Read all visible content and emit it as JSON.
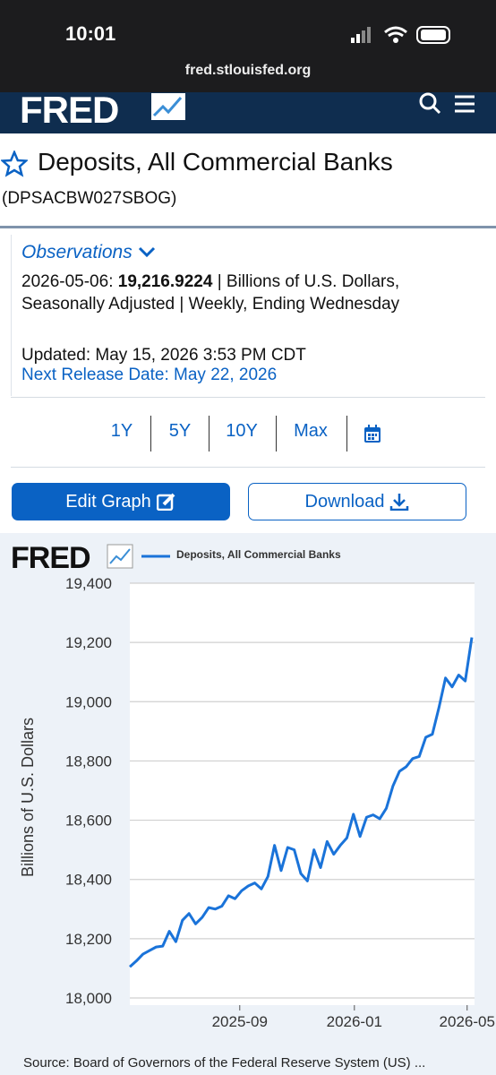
{
  "status_bar": {
    "time": "10:01",
    "url": "fred.stlouisfed.org"
  },
  "header": {
    "logo": "FRED"
  },
  "series_title": "Deposits, All Commercial Banks",
  "series_id": "(DPSACBW027SBOG)",
  "observations": {
    "heading": "Observations",
    "date": "2026-05-06:",
    "value": "19,216.9224",
    "units": "| Billions of U.S. Dollars, Seasonally Adjusted | Weekly, Ending Wednesday",
    "updated": "Updated: May 15, 2026 3:53 PM CDT",
    "next_release": "Next Release Date: May 22, 2026"
  },
  "ranges": [
    "1Y",
    "5Y",
    "10Y",
    "Max"
  ],
  "buttons": {
    "edit": "Edit Graph",
    "download": "Download"
  },
  "chart_data": {
    "type": "line",
    "logo": "FRED",
    "ylabel": "Billions of U.S. Dollars",
    "source": "Source: Board of Governors of the Federal Reserve System (US) ...",
    "x": [
      "2025-05-07",
      "2025-05-14",
      "2025-05-21",
      "2025-05-28",
      "2025-06-04",
      "2025-06-11",
      "2025-06-18",
      "2025-06-25",
      "2025-07-02",
      "2025-07-09",
      "2025-07-16",
      "2025-07-23",
      "2025-07-30",
      "2025-08-06",
      "2025-08-13",
      "2025-08-20",
      "2025-08-27",
      "2025-09-03",
      "2025-09-10",
      "2025-09-17",
      "2025-09-24",
      "2025-10-01",
      "2025-10-08",
      "2025-10-15",
      "2025-10-22",
      "2025-10-29",
      "2025-11-05",
      "2025-11-12",
      "2025-11-19",
      "2025-11-26",
      "2025-12-03",
      "2025-12-10",
      "2025-12-17",
      "2025-12-24",
      "2025-12-31",
      "2026-01-07",
      "2026-01-14",
      "2026-01-21",
      "2026-01-28",
      "2026-02-04",
      "2026-02-11",
      "2026-02-18",
      "2026-02-25",
      "2026-03-04",
      "2026-03-11",
      "2026-03-18",
      "2026-03-25",
      "2026-04-01",
      "2026-04-08",
      "2026-04-15",
      "2026-04-22",
      "2026-04-29",
      "2026-05-06"
    ],
    "series": [
      {
        "name": "Deposits, All Commercial Banks",
        "color": "#1a73d9",
        "values": [
          18105,
          18125,
          18148,
          18160,
          18172,
          18175,
          18225,
          18190,
          18262,
          18285,
          18250,
          18272,
          18305,
          18300,
          18310,
          18345,
          18335,
          18362,
          18378,
          18388,
          18368,
          18410,
          18515,
          18430,
          18508,
          18500,
          18420,
          18395,
          18500,
          18440,
          18528,
          18485,
          18515,
          18540,
          18620,
          18545,
          18610,
          18618,
          18605,
          18640,
          18715,
          18765,
          18780,
          18808,
          18815,
          18880,
          18890,
          18980,
          19080,
          19050,
          19090,
          19070,
          19216.9224
        ]
      }
    ],
    "xlim": [
      "2025-05-07",
      "2026-05-06"
    ],
    "xticks": [
      {
        "value": "2025-09-01",
        "label": "2025-09"
      },
      {
        "value": "2026-01-01",
        "label": "2026-01"
      },
      {
        "value": "2026-05-01",
        "label": "2026-05"
      }
    ],
    "ylim": [
      18000,
      19400
    ],
    "yticks": [
      {
        "value": 18000,
        "label": "18,000"
      },
      {
        "value": 18200,
        "label": "18,200"
      },
      {
        "value": 18400,
        "label": "18,400"
      },
      {
        "value": 18600,
        "label": "18,600"
      },
      {
        "value": 18800,
        "label": "18,800"
      },
      {
        "value": 19000,
        "label": "19,000"
      },
      {
        "value": 19200,
        "label": "19,200"
      },
      {
        "value": 19400,
        "label": "19,400"
      }
    ],
    "grid": true
  }
}
